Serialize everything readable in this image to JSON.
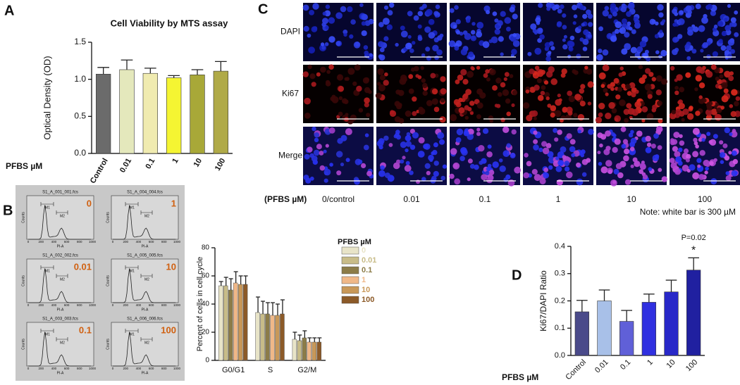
{
  "panel_labels": [
    "A",
    "B",
    "C",
    "D"
  ],
  "chart_data": [
    {
      "type": "bar",
      "title": "Cell Viability by MTS assay",
      "y_label": "Optical Density (OD)",
      "x_label": "PFBS µM",
      "categories": [
        "Control",
        "0.01",
        "0.1",
        "1",
        "10",
        "100"
      ],
      "values": [
        1.07,
        1.13,
        1.08,
        1.02,
        1.06,
        1.11
      ],
      "errors": [
        0.09,
        0.13,
        0.07,
        0.03,
        0.07,
        0.13
      ],
      "colors": [
        "#6b6b6b",
        "#e4e8bc",
        "#f0ebb0",
        "#f5f532",
        "#a8a838",
        "#b0aa48"
      ],
      "ylim": [
        0,
        1.5
      ],
      "yticks": [
        {
          "value": 0,
          "label": "0.0"
        },
        {
          "value": 0.5,
          "label": "0.5"
        },
        {
          "value": 1,
          "label": "1.0"
        },
        {
          "value": 1.5,
          "label": "1.5"
        }
      ]
    },
    {
      "type": "bar",
      "y_label": "Percent of cells in cell cycle",
      "legend_title": "PFBS µM",
      "categories": [
        "G0/G1",
        "S",
        "G2/M"
      ],
      "series": [
        {
          "name": "0",
          "color": "#e8e4c8",
          "values": [
            53,
            34,
            15
          ],
          "errors": [
            3,
            11,
            5
          ]
        },
        {
          "name": "0.01",
          "color": "#c8bc88",
          "values": [
            53,
            33,
            14
          ],
          "errors": [
            6,
            9,
            4
          ]
        },
        {
          "name": "0.1",
          "color": "#8c7c48",
          "values": [
            50,
            33,
            16
          ],
          "errors": [
            8,
            8,
            5
          ]
        },
        {
          "name": "1",
          "color": "#f0b888",
          "values": [
            55,
            32,
            13
          ],
          "errors": [
            8,
            9,
            3
          ]
        },
        {
          "name": "10",
          "color": "#c89858",
          "values": [
            54,
            32,
            13
          ],
          "errors": [
            6,
            8,
            3
          ]
        },
        {
          "name": "100",
          "color": "#8c5a28",
          "values": [
            54,
            33,
            13
          ],
          "errors": [
            6,
            10,
            3
          ]
        }
      ],
      "ylim": [
        0,
        80
      ],
      "yticks": [
        0,
        20,
        40,
        60,
        80
      ]
    },
    {
      "type": "bar",
      "y_label": "Ki67/DAPI Ratio",
      "x_label": "PFBS µM",
      "annotation": "P=0.02",
      "significance": "*",
      "categories": [
        "Control",
        "0.01",
        "0.1",
        "1",
        "10",
        "100"
      ],
      "values": [
        0.16,
        0.2,
        0.125,
        0.195,
        0.233,
        0.313
      ],
      "errors": [
        0.042,
        0.04,
        0.04,
        0.03,
        0.043,
        0.045
      ],
      "colors": [
        "#4a4a8a",
        "#a8c0e8",
        "#6060d8",
        "#3030e0",
        "#2828c8",
        "#2020a0"
      ],
      "ylim": [
        0,
        0.4
      ],
      "yticks": [
        {
          "value": 0,
          "label": "0.0"
        },
        {
          "value": 0.1,
          "label": "0.1"
        },
        {
          "value": 0.2,
          "label": "0.2"
        },
        {
          "value": 0.3,
          "label": "0.3"
        },
        {
          "value": 0.4,
          "label": "0.4"
        }
      ]
    }
  ],
  "flow_cytometry": {
    "plots": [
      {
        "file": "S1_A_001_001.fcs",
        "dose": "0"
      },
      {
        "file": "S1_A_004_004.fcs",
        "dose": "1"
      },
      {
        "file": "S1_A_002_002.fcs",
        "dose": "0.01"
      },
      {
        "file": "S1_A_005_005.fcs",
        "dose": "10"
      },
      {
        "file": "S1_A_003_003.fcs",
        "dose": "0.1"
      },
      {
        "file": "S1_A_006_006.fcs",
        "dose": "100"
      }
    ],
    "x_axis_label": "PI-A",
    "y_axis_label": "Counts",
    "x_ticks": [
      0,
      200,
      400,
      600,
      800,
      1000
    ],
    "gates": [
      "M1",
      "M2"
    ]
  },
  "microscopy": {
    "rows": [
      "DAPI",
      "Ki67",
      "Merge"
    ],
    "axis_label": "(PFBS µM)",
    "columns": [
      "0/control",
      "0.01",
      "0.1",
      "1",
      "10",
      "100"
    ],
    "note": "Note: white bar is 300 µM"
  }
}
